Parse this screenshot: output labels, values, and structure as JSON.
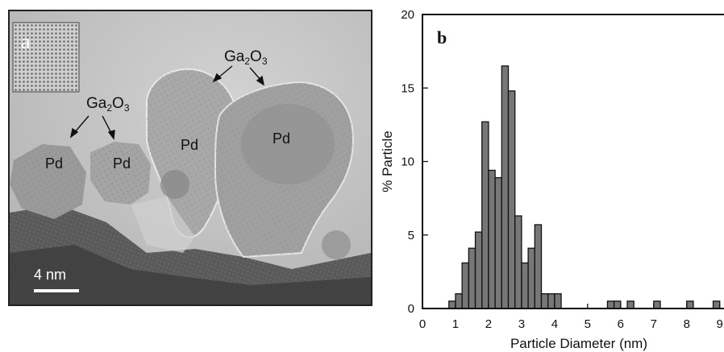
{
  "panel_a": {
    "letter": "a",
    "labels": {
      "ga2o3_left": {
        "base": "Ga",
        "sub1": "2",
        "mid": "O",
        "sub2": "3"
      },
      "ga2o3_right": {
        "base": "Ga",
        "sub1": "2",
        "mid": "O",
        "sub2": "3"
      },
      "pd": [
        "Pd",
        "Pd",
        "Pd",
        "Pd"
      ]
    },
    "scale_bar": "4 nm"
  },
  "chart_data": {
    "type": "bar",
    "panel_letter": "b",
    "xlabel": "Particle Diameter (nm)",
    "ylabel": "% Particle",
    "xlim": [
      0,
      9
    ],
    "ylim": [
      0,
      20
    ],
    "xticks": [
      0,
      1,
      2,
      3,
      4,
      5,
      6,
      7,
      8,
      9
    ],
    "yticks": [
      0,
      5,
      10,
      15,
      20
    ],
    "bin_width": 0.2,
    "bars": [
      {
        "x": 0.8,
        "value": 0.5
      },
      {
        "x": 1.0,
        "value": 1.0
      },
      {
        "x": 1.2,
        "value": 3.1
      },
      {
        "x": 1.4,
        "value": 4.1
      },
      {
        "x": 1.6,
        "value": 5.2
      },
      {
        "x": 1.8,
        "value": 12.7
      },
      {
        "x": 2.0,
        "value": 9.4
      },
      {
        "x": 2.2,
        "value": 8.9
      },
      {
        "x": 2.4,
        "value": 16.5
      },
      {
        "x": 2.6,
        "value": 14.8
      },
      {
        "x": 2.8,
        "value": 6.3
      },
      {
        "x": 3.0,
        "value": 3.1
      },
      {
        "x": 3.2,
        "value": 4.1
      },
      {
        "x": 3.4,
        "value": 5.7
      },
      {
        "x": 3.6,
        "value": 1.0
      },
      {
        "x": 3.8,
        "value": 1.0
      },
      {
        "x": 4.0,
        "value": 1.0
      },
      {
        "x": 5.6,
        "value": 0.5
      },
      {
        "x": 5.8,
        "value": 0.5
      },
      {
        "x": 6.2,
        "value": 0.5
      },
      {
        "x": 7.0,
        "value": 0.5
      },
      {
        "x": 8.0,
        "value": 0.5
      },
      {
        "x": 8.8,
        "value": 0.5
      }
    ],
    "bar_color": "#777777",
    "grid": false
  }
}
